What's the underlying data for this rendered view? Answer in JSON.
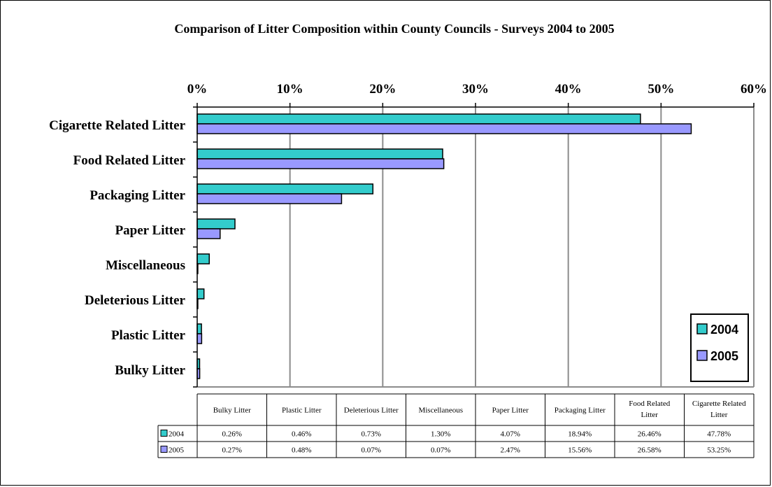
{
  "chart_data": {
    "type": "bar",
    "orientation": "horizontal",
    "title": "Comparison of Litter Composition within County Councils - Surveys 2004 to 2005",
    "xlabel": "",
    "ylabel": "",
    "xlim": [
      0,
      60
    ],
    "x_ticks": [
      "0%",
      "10%",
      "20%",
      "30%",
      "40%",
      "50%",
      "60%"
    ],
    "x_axis_position": "top",
    "grid": true,
    "legend_position": "right",
    "categories": [
      "Cigarette Related Litter",
      "Food Related Litter",
      "Packaging Litter",
      "Paper Litter",
      "Miscellaneous",
      "Deleterious Litter",
      "Plastic Litter",
      "Bulky Litter"
    ],
    "series": [
      {
        "name": "2004",
        "color": "#33CCCC",
        "values": [
          47.78,
          26.46,
          18.94,
          4.07,
          1.3,
          0.73,
          0.46,
          0.26
        ]
      },
      {
        "name": "2005",
        "color": "#9999FF",
        "values": [
          53.25,
          26.58,
          15.56,
          2.47,
          0.07,
          0.07,
          0.48,
          0.27
        ]
      }
    ],
    "data_table": {
      "columns": [
        "Bulky Litter",
        "Plastic Litter",
        "Deleterious Litter",
        "Miscellaneous",
        "Paper Litter",
        "Packaging Litter",
        "Food Related Litter",
        "Cigarette Related Litter"
      ],
      "column_lines": [
        [
          "Bulky Litter"
        ],
        [
          "Plastic Litter"
        ],
        [
          "Deleterious Litter"
        ],
        [
          "Miscellaneous"
        ],
        [
          "Paper Litter"
        ],
        [
          "Packaging Litter"
        ],
        [
          "Food Related",
          "Litter"
        ],
        [
          "Cigarette Related",
          "Litter"
        ]
      ],
      "rows": [
        {
          "label": "2004",
          "values": [
            "0.26%",
            "0.46%",
            "0.73%",
            "1.30%",
            "4.07%",
            "18.94%",
            "26.46%",
            "47.78%"
          ]
        },
        {
          "label": "2005",
          "values": [
            "0.27%",
            "0.48%",
            "0.07%",
            "0.07%",
            "2.47%",
            "15.56%",
            "26.58%",
            "53.25%"
          ]
        }
      ]
    }
  }
}
